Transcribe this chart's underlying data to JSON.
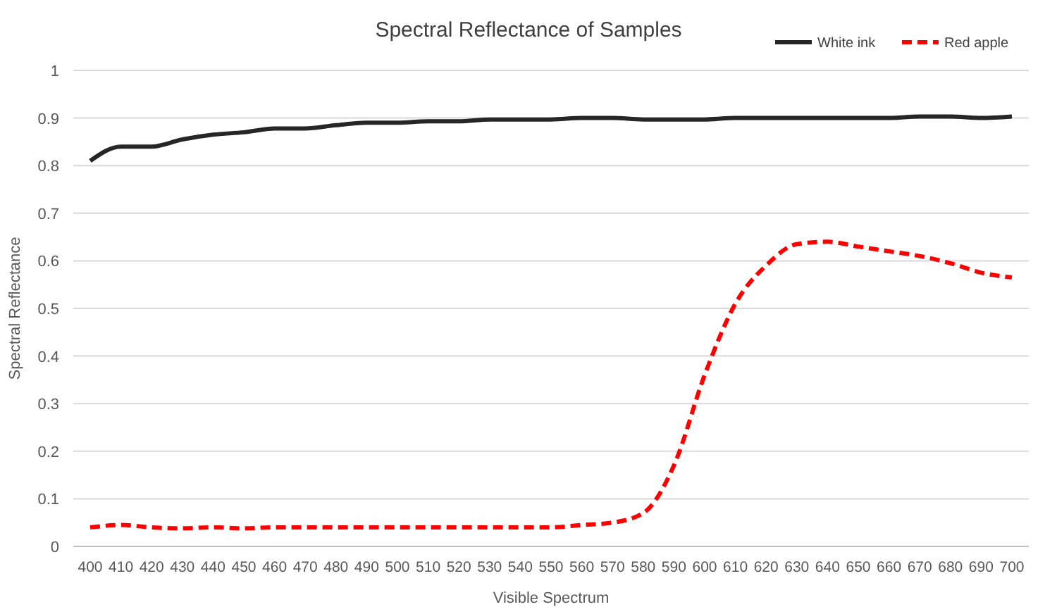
{
  "chart_data": {
    "type": "line",
    "title": "Spectral Reflectance of Samples",
    "xlabel": "Visible Spectrum",
    "ylabel": "Spectral Reflectance",
    "categories": [
      "400",
      "410",
      "420",
      "430",
      "440",
      "450",
      "460",
      "470",
      "480",
      "490",
      "500",
      "510",
      "520",
      "530",
      "540",
      "550",
      "560",
      "570",
      "580",
      "590",
      "600",
      "610",
      "620",
      "630",
      "640",
      "650",
      "660",
      "670",
      "680",
      "690",
      "700"
    ],
    "series": [
      {
        "name": "White ink",
        "color": "#262626",
        "line_style": "solid",
        "values": [
          0.81,
          0.84,
          0.84,
          0.855,
          0.865,
          0.87,
          0.878,
          0.878,
          0.885,
          0.89,
          0.89,
          0.893,
          0.893,
          0.897,
          0.897,
          0.897,
          0.9,
          0.9,
          0.897,
          0.897,
          0.897,
          0.9,
          0.9,
          0.9,
          0.9,
          0.9,
          0.9,
          0.903,
          0.903,
          0.9,
          0.903
        ]
      },
      {
        "name": "Red apple",
        "color": "#ff0000",
        "line_style": "dashed",
        "values": [
          0.04,
          0.045,
          0.04,
          0.038,
          0.04,
          0.038,
          0.04,
          0.04,
          0.04,
          0.04,
          0.04,
          0.04,
          0.04,
          0.04,
          0.04,
          0.04,
          0.045,
          0.05,
          0.07,
          0.17,
          0.36,
          0.51,
          0.59,
          0.635,
          0.64,
          0.63,
          0.62,
          0.61,
          0.595,
          0.575,
          0.565
        ]
      }
    ],
    "ylim": [
      0,
      1
    ],
    "yticks": [
      0,
      0.1,
      0.2,
      0.3,
      0.4,
      0.5,
      0.6,
      0.7,
      0.8,
      0.9,
      1
    ],
    "grid": "y",
    "legend": "top right"
  }
}
